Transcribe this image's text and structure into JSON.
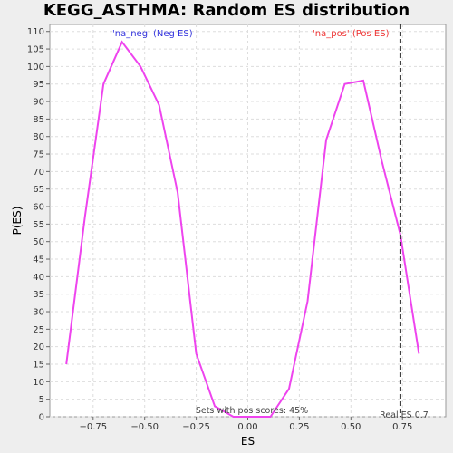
{
  "chart_data": {
    "type": "line",
    "title": "KEGG_ASTHMA: Random ES distribution",
    "xlabel": "ES",
    "ylabel": "P(ES)",
    "xlim": [
      -0.96,
      0.96
    ],
    "ylim": [
      0,
      112
    ],
    "x_ticks": [
      -0.75,
      -0.5,
      -0.25,
      0.0,
      0.25,
      0.5,
      0.75
    ],
    "x_tick_labels": [
      "−0.75",
      "−0.50",
      "−0.25",
      "0.00",
      "0.25",
      "0.50",
      "0.75"
    ],
    "y_ticks": [
      0,
      5,
      10,
      15,
      20,
      25,
      30,
      35,
      40,
      45,
      50,
      55,
      60,
      65,
      70,
      75,
      80,
      85,
      90,
      95,
      100,
      105,
      110
    ],
    "grid": true,
    "line_color": "#ee44ee",
    "series": [
      {
        "x": [
          -0.88,
          -0.79,
          -0.7,
          -0.61,
          -0.52,
          -0.43,
          -0.34,
          -0.25,
          -0.16,
          -0.07,
          0.02,
          0.11,
          0.2,
          0.29,
          0.38,
          0.47,
          0.56,
          0.65,
          0.74,
          0.83
        ],
        "values": [
          15,
          57,
          95,
          107,
          100,
          89,
          64,
          18,
          3,
          0,
          0,
          0,
          8,
          33,
          79,
          95,
          96,
          73,
          52,
          18
        ]
      }
    ],
    "legend": [
      {
        "label": "'na_neg' (Neg ES)",
        "color": "#3333dd"
      },
      {
        "label": "'na_pos' (Pos ES)",
        "color": "#ee3333"
      }
    ],
    "real_es": {
      "value": 0.74,
      "label": "Real ES 0.7"
    },
    "annotation": "Sets with pos scores: 45%"
  }
}
